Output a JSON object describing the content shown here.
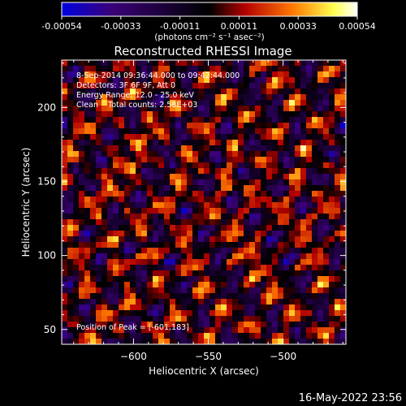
{
  "chart_data": {
    "type": "heatmap",
    "title": "Reconstructed RHESSI Image",
    "colorbar": {
      "ticks": [
        "-0.00054",
        "-0.00033",
        "-0.00011",
        "0.00011",
        "0.00033",
        "0.00054"
      ],
      "range": [
        -0.00054,
        0.00054
      ],
      "unit_label": "(photons cm⁻² s⁻¹ asec⁻²)",
      "colors": [
        "#0000e0",
        "#3a0078",
        "#000000",
        "#b40000",
        "#ff7800",
        "#ffff50",
        "#ffffff"
      ]
    },
    "xlabel": "Heliocentric X (arcsec)",
    "ylabel": "Heliocentric Y (arcsec)",
    "xlim": [
      -648,
      -458
    ],
    "ylim": [
      40,
      232
    ],
    "xticks": [
      -600,
      -550,
      -500
    ],
    "yticks": [
      50,
      100,
      150,
      200
    ],
    "info_lines": [
      "8-Sep-2014 09:36:44.000 to 09:42:44.000",
      "Detectors: 3F 6F 9F, Att 0",
      "Energy Range: 12.0 - 25.0 keV",
      "Clean    Total counts: 2.58E+03"
    ],
    "peak_label": "Position of Peak = [-601,183]",
    "grid": false
  },
  "footer": {
    "timestamp": "16-May-2022 23:56"
  }
}
